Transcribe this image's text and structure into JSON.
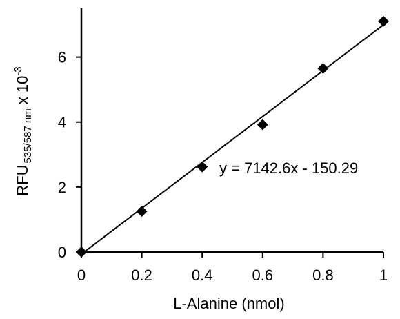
{
  "chart_data": {
    "type": "scatter",
    "xlabel": "L-Alanine (nmol)",
    "ylabel": {
      "main": "RFU",
      "subscript": "535/587 nm",
      "multiplier": "x 10",
      "exponent": "-3"
    },
    "x_ticks": [
      "0",
      "0.2",
      "0.4",
      "0.6",
      "0.8",
      "1"
    ],
    "y_ticks": [
      "0",
      "2",
      "4",
      "6"
    ],
    "xlim": [
      0,
      1
    ],
    "ylim": [
      0,
      7.5
    ],
    "grid": false,
    "series": [
      {
        "marker": "diamond",
        "color": "#000000",
        "x": [
          0,
          0.2,
          0.4,
          0.6,
          0.8,
          1.0
        ],
        "y": [
          0.0,
          1.25,
          2.62,
          3.92,
          5.65,
          7.1
        ]
      }
    ],
    "trendline": {
      "equation": "y = 7142.6x - 150.29",
      "slope": 7.1426,
      "intercept": -0.15029
    }
  }
}
